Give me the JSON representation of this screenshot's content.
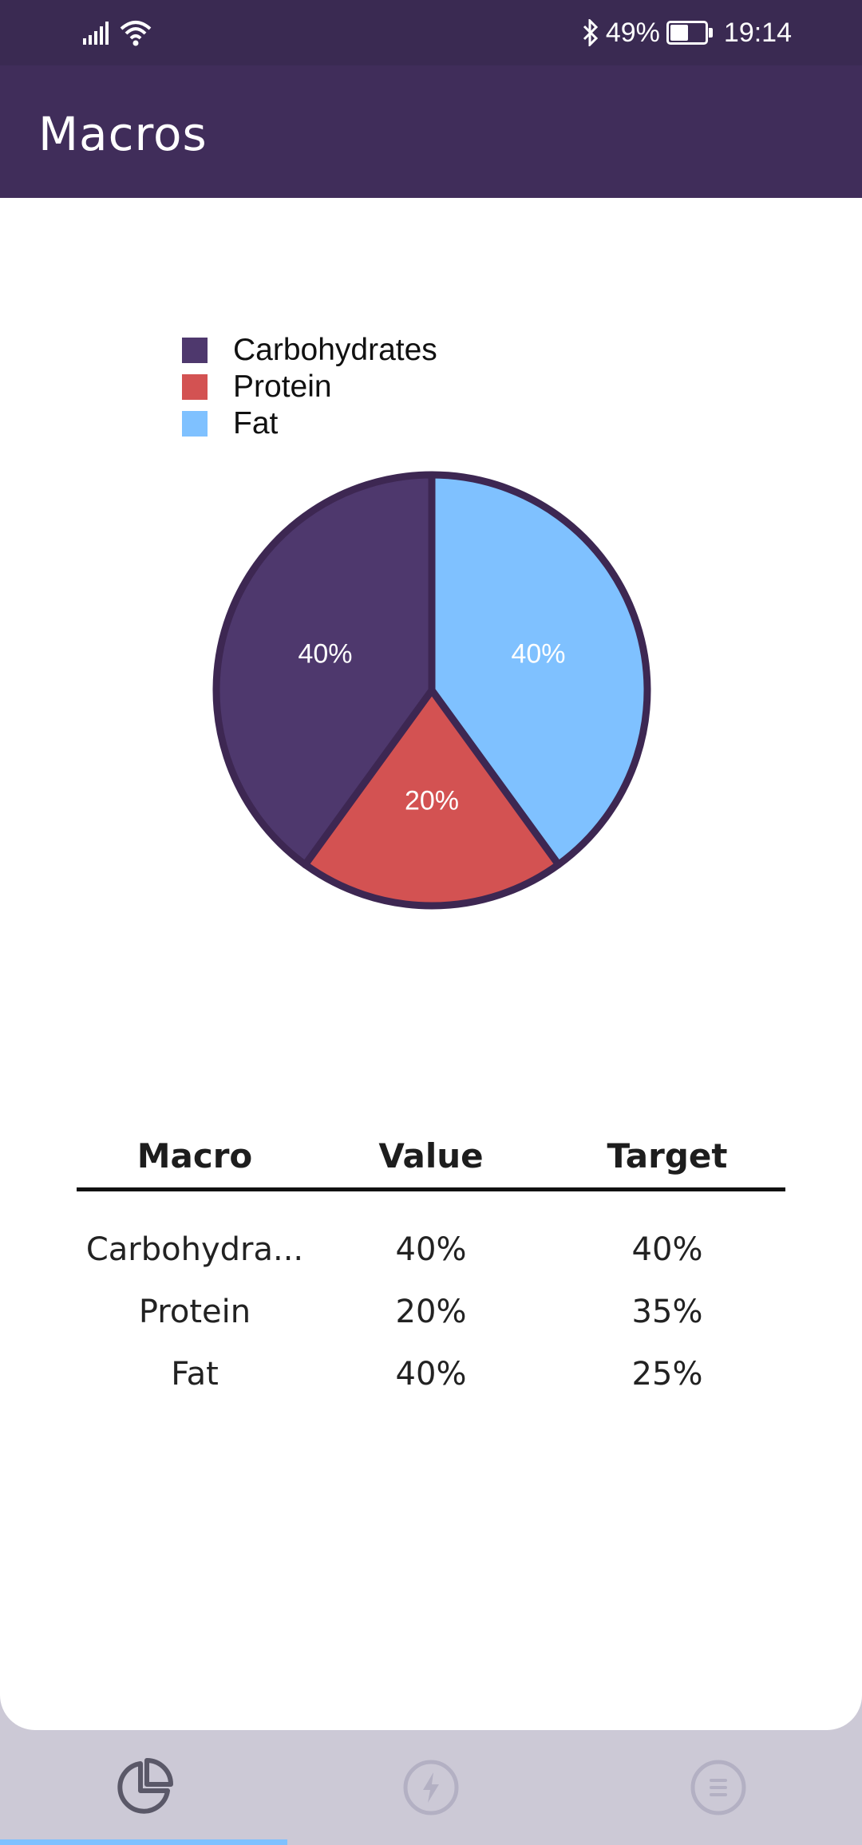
{
  "status_bar": {
    "battery_percent": "49%",
    "battery_level": 0.49,
    "time": "19:14",
    "icons": [
      "signal-icon",
      "wifi-icon",
      "bluetooth-icon",
      "battery-icon"
    ]
  },
  "app_bar": {
    "title": "Macros"
  },
  "chart_data": {
    "type": "pie",
    "legend_position": "top-left",
    "categories": [
      "Carbohydrates",
      "Protein",
      "Fat"
    ],
    "values": [
      40,
      20,
      40
    ],
    "labels": [
      "40%",
      "20%",
      "40%"
    ],
    "colors": [
      "#4e386d",
      "#d35252",
      "#7fc1ff"
    ],
    "stroke_color": "#3d2752"
  },
  "table": {
    "headers": [
      "Macro",
      "Value",
      "Target"
    ],
    "rows": [
      {
        "macro": "Carbohydra...",
        "value": "40%",
        "target": "40%"
      },
      {
        "macro": "Protein",
        "value": "20%",
        "target": "35%"
      },
      {
        "macro": "Fat",
        "value": "40%",
        "target": "25%"
      }
    ]
  },
  "bottom_nav": {
    "items": [
      {
        "icon": "pie-chart-icon",
        "active": true
      },
      {
        "icon": "lightning-icon",
        "active": false
      },
      {
        "icon": "menu-icon",
        "active": false
      }
    ],
    "active_color": "#5a5868",
    "inactive_color": "#b3b0c3"
  }
}
